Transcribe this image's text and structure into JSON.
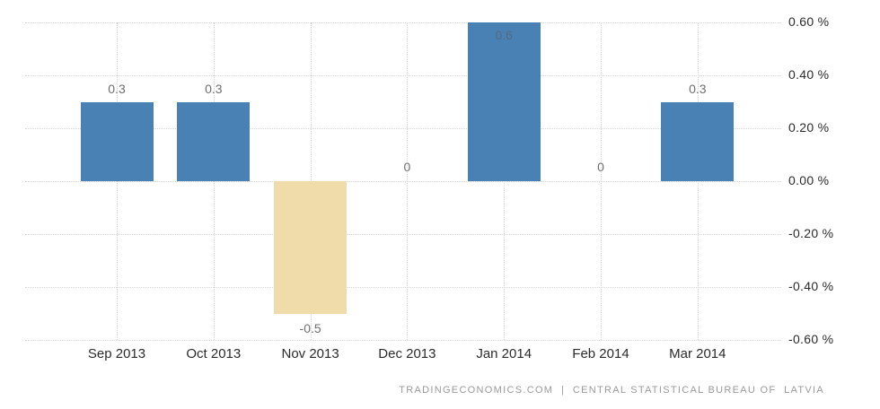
{
  "chart_data": {
    "type": "bar",
    "title": "",
    "xlabel": "",
    "ylabel": "",
    "categories": [
      "Sep 2013",
      "Oct 2013",
      "Nov 2013",
      "Dec 2013",
      "Jan 2014",
      "Feb 2014",
      "Mar 2014"
    ],
    "values": [
      0.3,
      0.3,
      -0.5,
      0,
      0.6,
      0,
      0.3
    ],
    "value_labels": [
      "0.3",
      "0.3",
      "-0.5",
      "0",
      "0.6",
      "0",
      "0.3"
    ],
    "ylim": [
      -0.6,
      0.6
    ],
    "ytick_step": 0.2,
    "ytick_labels": [
      "0.60 %",
      "0.40 %",
      "0.20 %",
      "0.00 %",
      "-0.20 %",
      "-0.40 %",
      "-0.60 %"
    ],
    "grid": true,
    "legend_position": "none"
  },
  "colors": {
    "positive_bar": "#4a81b4",
    "negative_bar": "#f0dcaa",
    "value_label": "#6e6e6e",
    "inside_value_label": "#546a80",
    "axis_label": "#2b2b2b",
    "gridline": "#d4d4d4",
    "footer_text": "#9a9a9a",
    "background": "#ffffff"
  },
  "footer": {
    "text": "TRADINGECONOMICS.COM  |  CENTRAL STATISTICAL BUREAU OF  LATVIA"
  }
}
